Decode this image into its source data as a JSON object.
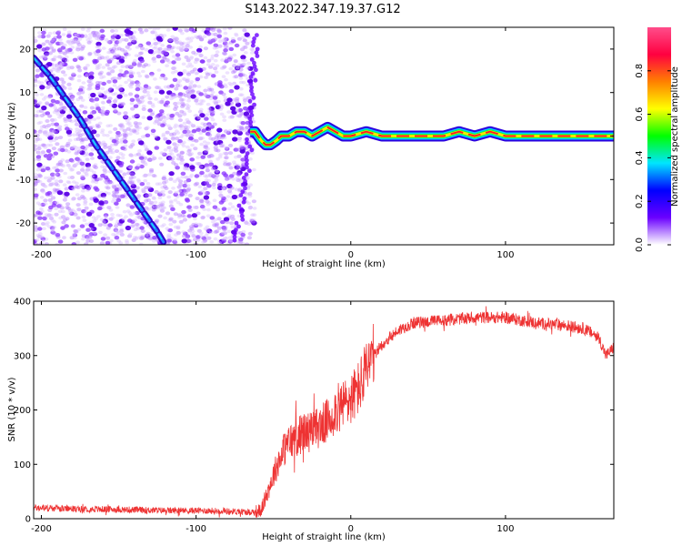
{
  "title": "S143.2022.347.19.37.G12",
  "chart_data": [
    {
      "type": "heatmap",
      "xlabel": "Height of straight line (km)",
      "ylabel": "Frequency (Hz)",
      "xlim": [
        -205,
        170
      ],
      "ylim": [
        -25,
        25
      ],
      "xticks": [
        -200,
        -100,
        0,
        100
      ],
      "yticks": [
        -20,
        -10,
        0,
        10,
        20
      ],
      "colorbar": {
        "label": "Normalized spectral amplitude",
        "range": [
          0.0,
          1.0
        ],
        "ticks": [
          "0.0",
          "0.2",
          "0.4",
          "0.6",
          "0.8"
        ],
        "colormap": [
          "#ffffff",
          "#6a00ff",
          "#0000ff",
          "#00e5ff",
          "#00ff00",
          "#ffff00",
          "#ff8000",
          "#ff0040",
          "#ff4d8a"
        ]
      },
      "features": {
        "descending_line": {
          "x": [
            -205,
            -195,
            -185,
            -175,
            -165,
            -155,
            -145,
            -135,
            -125,
            -120
          ],
          "y": [
            18,
            14,
            9,
            4,
            -2,
            -7,
            -12,
            -17,
            -22,
            -25
          ]
        },
        "noise_region_end_x": -62,
        "ridge": {
          "x": [
            -65,
            -62,
            -58,
            -55,
            -52,
            -48,
            -45,
            -40,
            -35,
            -30,
            -25,
            -20,
            -15,
            -10,
            -5,
            0,
            10,
            20,
            30,
            40,
            50,
            60,
            70,
            80,
            90,
            100,
            110,
            120,
            130,
            140,
            150,
            160,
            170
          ],
          "y": [
            1,
            1,
            -1,
            -2,
            -2,
            -1,
            0,
            0,
            1,
            1,
            0,
            1,
            2,
            1,
            0,
            0,
            1,
            0,
            0,
            0,
            0,
            0,
            1,
            0,
            1,
            0,
            0,
            0,
            0,
            0,
            0,
            0,
            0
          ]
        }
      }
    },
    {
      "type": "line",
      "xlabel": "Height of straight line (km)",
      "ylabel": "SNR (10 * v/v)",
      "xlim": [
        -205,
        170
      ],
      "ylim": [
        0,
        400
      ],
      "xticks": [
        -200,
        -100,
        0,
        100
      ],
      "yticks": [
        0,
        100,
        200,
        300,
        400
      ],
      "color": "#ee3333",
      "trend": {
        "x": [
          -205,
          -180,
          -150,
          -120,
          -100,
          -80,
          -65,
          -58,
          -50,
          -45,
          -40,
          -35,
          -30,
          -25,
          -20,
          -15,
          -10,
          -5,
          0,
          5,
          10,
          15,
          20,
          30,
          40,
          60,
          80,
          100,
          120,
          140,
          150,
          160,
          165,
          170
        ],
        "y": [
          20,
          18,
          17,
          15,
          15,
          14,
          12,
          15,
          80,
          120,
          140,
          150,
          160,
          160,
          170,
          180,
          200,
          210,
          220,
          240,
          270,
          300,
          320,
          345,
          360,
          365,
          370,
          370,
          360,
          355,
          350,
          335,
          300,
          315
        ]
      }
    }
  ]
}
